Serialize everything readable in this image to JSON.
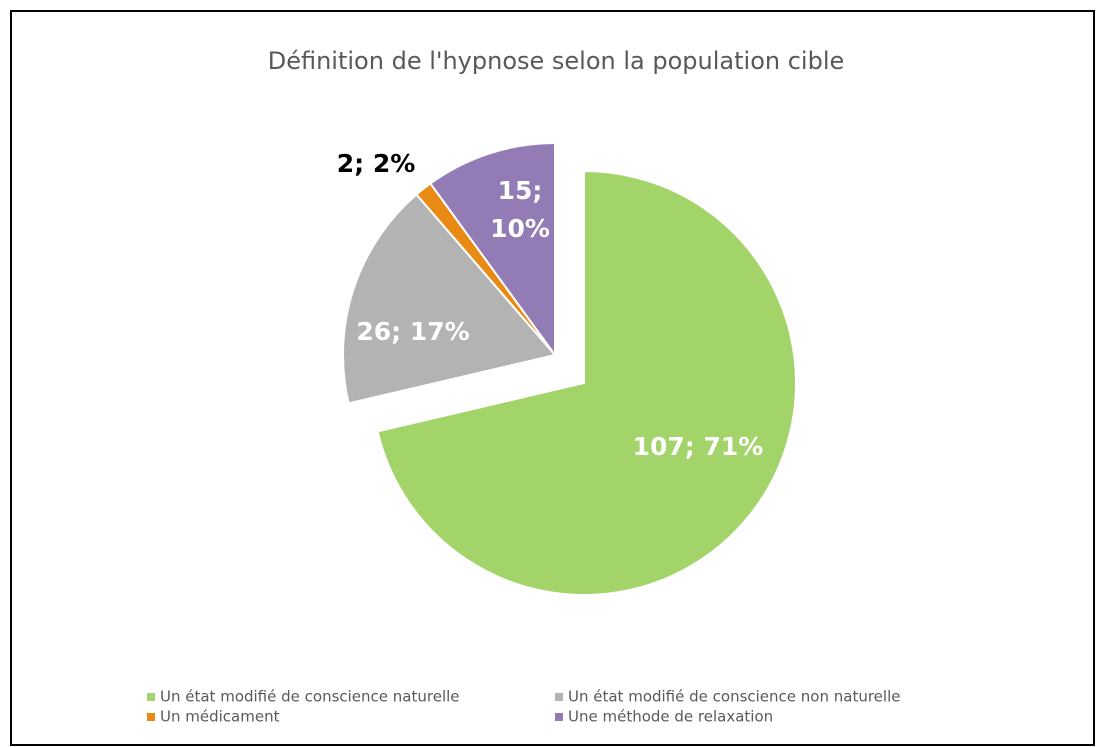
{
  "chart_data": {
    "type": "pie",
    "title": "Définition de l'hypnose selon la population cible",
    "categories": [
      "Un état modifié de conscience naturelle",
      "Un état modifié de conscience non naturelle",
      "Un médicament",
      "Une méthode de relaxation"
    ],
    "values": [
      107,
      26,
      2,
      15
    ],
    "value_labels": [
      "107; 71%",
      "26; 17%",
      "2; 2%",
      "15; 10%"
    ],
    "colors": [
      "#a2d46a",
      "#b3b3b3",
      "#e98a14",
      "#937bb5"
    ],
    "legend": "bottom"
  }
}
